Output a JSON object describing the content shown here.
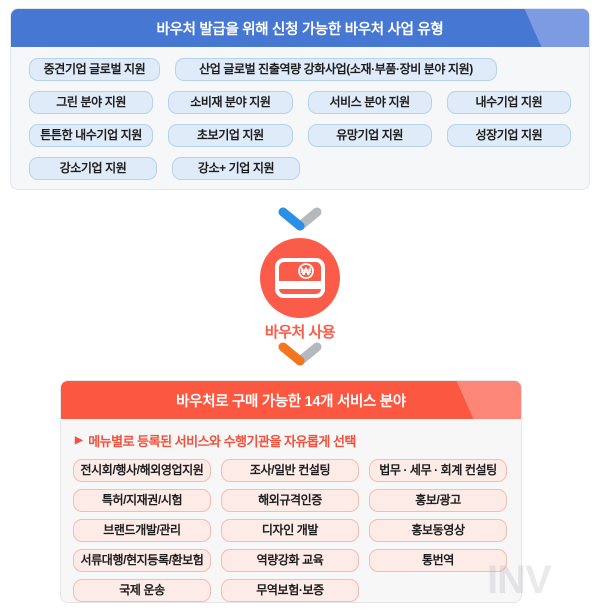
{
  "top_section": {
    "header": "바우처 발급을 위해 신청 가능한 바우처 사업 유형",
    "rows": [
      [
        "중견기업 글로벌 지원",
        "산업 글로벌 진출역량 강화사업(소재·부품·장비 분야 지원)"
      ],
      [
        "그린 분야 지원",
        "소비재 분야 지원",
        "서비스 분야 지원",
        "내수기업 지원"
      ],
      [
        "튼튼한 내수기업 지원",
        "초보기업 지원",
        "유망기업 지원",
        "성장기업 지원"
      ],
      [
        "강소기업 지원",
        "강소+ 기업 지원"
      ]
    ]
  },
  "middle": {
    "label": "바우처 사용",
    "currency_symbol": "₩"
  },
  "bottom_section": {
    "header": "바우처로 구매 가능한 14개 서비스 분야",
    "note_marker": "▶",
    "note": "메뉴별로 등록된 서비스와 수행기관을 자유롭게 선택",
    "rows": [
      [
        "전시회/행사/해외영업지원",
        "조사/일반 컨설팅",
        "법무 · 세무 · 회계 컨설팅"
      ],
      [
        "특허/지재권/시험",
        "해외규격인증",
        "홍보/광고"
      ],
      [
        "브랜드개발/관리",
        "디자인 개발",
        "홍보동영상"
      ],
      [
        "서류대행/현지등록/환보험",
        "역량강화 교육",
        "통번역"
      ],
      [
        "국제 운송",
        "무역보험·보증"
      ]
    ]
  },
  "watermark": "INV",
  "colors": {
    "top_header_bg": "#4577d3",
    "top_header_corner": "#7d9be2",
    "top_pill_bg": "#dfebf9",
    "top_pill_border": "#b7d2ee",
    "bottom_header_bg": "#fc5740",
    "bottom_header_corner": "#fd8776",
    "bottom_pill_bg": "#fdebe7",
    "bottom_pill_border": "#f7bcae",
    "voucher_red": "#fb5b49",
    "chevron_blue": "#2b8fe8",
    "chevron_orange": "#f3761f",
    "chevron_gray": "#b5b8bc"
  }
}
